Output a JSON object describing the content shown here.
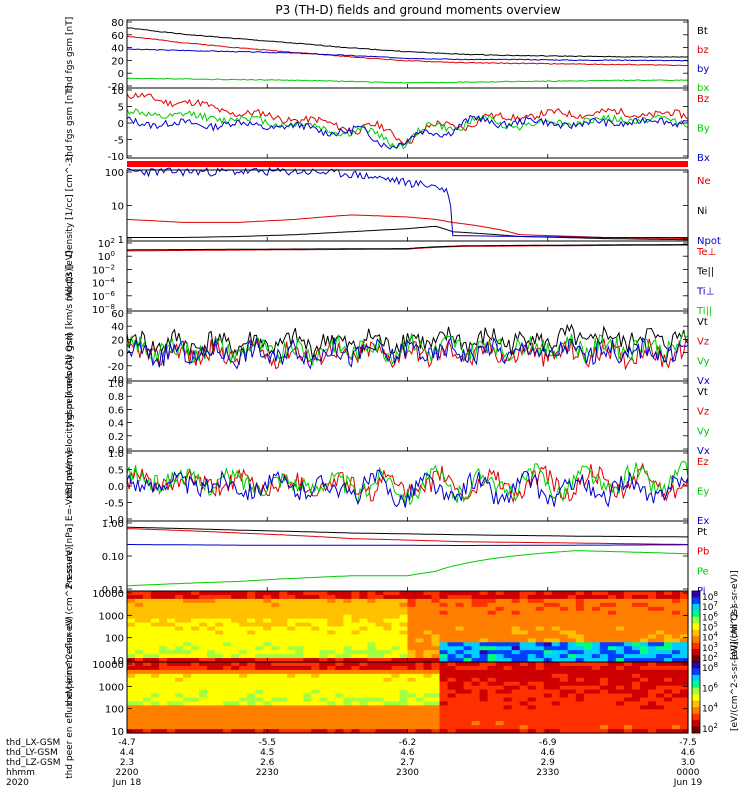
{
  "title": "P3 (TH-D) fields and ground moments overview",
  "colors": {
    "black": "#000000",
    "red": "#dd0000",
    "green": "#00cc00",
    "blue": "#0000cc",
    "bar": "#ff0000"
  },
  "chart_data": [
    {
      "id": "fgs_gsm",
      "type": "line",
      "ylabel": "thd fgs gsm [nT]",
      "ylim": [
        -20,
        85
      ],
      "ticks": [
        "80",
        "60",
        "40",
        "20",
        "0",
        "-20"
      ],
      "series": [
        {
          "name": "Bt",
          "color": "black",
          "x": [
            0,
            0.1,
            0.2,
            0.3,
            0.4,
            0.5,
            0.6,
            0.7,
            0.8,
            0.9,
            1.0
          ],
          "y": [
            73,
            63,
            56,
            49,
            42,
            36,
            32,
            30,
            29,
            28,
            28
          ]
        },
        {
          "name": "bz",
          "color": "red",
          "x": [
            0,
            0.1,
            0.2,
            0.3,
            0.4,
            0.5,
            0.6,
            0.7,
            0.8,
            0.9,
            1.0
          ],
          "y": [
            60,
            50,
            42,
            35,
            28,
            22,
            19,
            18,
            17,
            16,
            15
          ]
        },
        {
          "name": "by",
          "color": "blue",
          "x": [
            0,
            0.1,
            0.2,
            0.3,
            0.4,
            0.5,
            0.6,
            0.7,
            0.8,
            0.9,
            1.0
          ],
          "y": [
            40,
            38,
            36,
            34,
            30,
            26,
            24,
            24,
            23,
            23,
            22
          ]
        },
        {
          "name": "bx",
          "color": "green",
          "x": [
            0,
            0.1,
            0.2,
            0.3,
            0.4,
            0.5,
            0.6,
            0.7,
            0.8,
            0.9,
            1.0
          ],
          "y": [
            -5,
            -6,
            -7,
            -8,
            -10,
            -12,
            -11,
            -10,
            -9,
            -8,
            -8
          ]
        }
      ]
    },
    {
      "id": "fgs_gsm_detrended",
      "type": "line",
      "ylabel": "thd fgs gsm [nT]",
      "ylim": [
        -14,
        11
      ],
      "ticks": [
        "10",
        "5",
        "0",
        "-5",
        "-10"
      ],
      "series": [
        {
          "name": "Bz",
          "color": "red",
          "x": [
            0,
            0.1,
            0.2,
            0.3,
            0.4,
            0.5,
            0.55,
            0.6,
            0.7,
            0.8,
            0.9,
            1.0
          ],
          "y": [
            8,
            6,
            2,
            0,
            -3,
            -6,
            -4,
            -1,
            1,
            2,
            2,
            1
          ]
        },
        {
          "name": "By",
          "color": "green",
          "x": [
            0,
            0.1,
            0.2,
            0.3,
            0.4,
            0.5,
            0.55,
            0.6,
            0.7,
            0.8,
            0.9,
            1.0
          ],
          "y": [
            2,
            1,
            0,
            -2,
            -5,
            -8,
            -3,
            -1,
            -2,
            -1,
            0,
            -1
          ]
        },
        {
          "name": "Bx",
          "color": "blue",
          "x": [
            0,
            0.1,
            0.2,
            0.3,
            0.4,
            0.5,
            0.55,
            0.6,
            0.7,
            0.8,
            0.9,
            1.0
          ],
          "y": [
            -1,
            -2,
            -2,
            -3,
            -5,
            -9,
            -4,
            -2,
            -1,
            -2,
            -1,
            -1
          ]
        }
      ]
    },
    {
      "id": "density",
      "type": "line",
      "ylabel": "Density [1/cc] [cm^-3]",
      "scale": "log",
      "ylim": [
        1,
        200
      ],
      "ticks": [
        "100",
        "10",
        "1"
      ],
      "series": [
        {
          "name": "Ne",
          "color": "red",
          "x": [
            0,
            0.1,
            0.2,
            0.3,
            0.4,
            0.5,
            0.55,
            0.58,
            0.7,
            0.85,
            1.0
          ],
          "y": [
            5,
            4,
            4,
            5,
            7,
            6,
            5,
            4,
            1.6,
            1.3,
            1.2
          ]
        },
        {
          "name": "Ni",
          "color": "black",
          "x": [
            0,
            0.1,
            0.2,
            0.3,
            0.4,
            0.5,
            0.55,
            0.58,
            0.7,
            0.85,
            1.0
          ],
          "y": [
            1.3,
            1.3,
            1.4,
            1.6,
            2,
            2.5,
            3,
            2,
            1.4,
            1.2,
            1.1
          ]
        },
        {
          "name": "Npot",
          "color": "blue",
          "x": [
            0.3,
            0.35,
            0.4,
            0.45,
            0.5,
            0.55,
            0.57,
            0.58,
            0.7,
            0.85,
            1.0
          ],
          "y": [
            180,
            170,
            150,
            110,
            80,
            60,
            40,
            1.5,
            1.4,
            1.3,
            1.3
          ]
        }
      ]
    },
    {
      "id": "moqt3",
      "type": "line",
      "ylabel": "moqt3 [eV]",
      "scale": "log",
      "ylim": [
        1e-09,
        1000
      ],
      "ticks": [
        "10^2",
        "10^0",
        "10^-2",
        "10^-4",
        "10^-6",
        "10^-8"
      ],
      "series": [
        {
          "name": "Te⊥",
          "color": "red",
          "x": [
            0,
            0.5,
            0.6,
            1.0
          ],
          "y": [
            20,
            40,
            120,
            200
          ]
        },
        {
          "name": "Te||",
          "color": "black",
          "x": [
            0,
            0.5,
            0.6,
            1.0
          ],
          "y": [
            30,
            50,
            150,
            250
          ]
        },
        {
          "name": "Ti⊥",
          "color": "blue",
          "x": [
            0,
            1.0
          ],
          "y": [
            0,
            0
          ]
        },
        {
          "name": "Ti||",
          "color": "green",
          "x": [
            0,
            1.0
          ],
          "y": [
            0,
            0
          ]
        }
      ]
    },
    {
      "id": "peir_velocity",
      "type": "line",
      "ylabel": "thd peir velocity gsm [km/s (All Qs)]",
      "ylim": [
        -40,
        62
      ],
      "ticks": [
        "60",
        "40",
        "20",
        "0",
        "-20",
        "-40"
      ],
      "series": [
        {
          "name": "Vt",
          "color": "black",
          "x": [
            0,
            0.25,
            0.5,
            0.75,
            1.0
          ],
          "y": [
            15,
            14,
            18,
            20,
            22
          ]
        },
        {
          "name": "Vz",
          "color": "red",
          "x": [
            0,
            0.25,
            0.5,
            0.75,
            1.0
          ],
          "y": [
            0,
            0,
            0,
            0,
            0
          ]
        },
        {
          "name": "Vy",
          "color": "green",
          "x": [
            0,
            0.25,
            0.5,
            0.75,
            1.0
          ],
          "y": [
            5,
            5,
            8,
            10,
            10
          ]
        },
        {
          "name": "Vx",
          "color": "blue",
          "x": [
            0,
            0.25,
            0.5,
            0.75,
            1.0
          ],
          "y": [
            0,
            0,
            2,
            3,
            2
          ]
        }
      ]
    },
    {
      "id": "peer_velocity",
      "type": "line",
      "ylabel": "thd peer velocity gsm [km/s (All Qs)]",
      "ylim": [
        0,
        1
      ],
      "ticks": [
        "1.0",
        "0.8",
        "0.6",
        "0.4",
        "0.2",
        "0.0"
      ],
      "series": [
        {
          "name": "Vt",
          "color": "black",
          "x": [],
          "y": []
        },
        {
          "name": "Vz",
          "color": "red",
          "x": [],
          "y": []
        },
        {
          "name": "Vy",
          "color": "green",
          "x": [],
          "y": []
        },
        {
          "name": "Vx",
          "color": "blue",
          "x": [],
          "y": []
        }
      ]
    },
    {
      "id": "efield",
      "type": "line",
      "ylabel": "E=-VxB [mV/m]",
      "ylim": [
        -1,
        1
      ],
      "ticks": [
        "1.0",
        "0.5",
        "0.0",
        "-0.5",
        "-1.0"
      ],
      "series": [
        {
          "name": "Ez",
          "color": "red",
          "x": [
            0,
            0.5,
            1.0
          ],
          "y": [
            0.1,
            0,
            0.1
          ]
        },
        {
          "name": "Ey",
          "color": "green",
          "x": [
            0,
            0.5,
            1.0
          ],
          "y": [
            0.2,
            0,
            0.2
          ]
        },
        {
          "name": "Ex",
          "color": "blue",
          "x": [
            0,
            0.5,
            1.0
          ],
          "y": [
            0.1,
            -0.1,
            -0.1
          ]
        }
      ]
    },
    {
      "id": "pressure",
      "type": "line",
      "ylabel": "Pressure [nPa]",
      "scale": "log",
      "ylim": [
        0.005,
        3
      ],
      "ticks": [
        "1.00",
        "0.10",
        "0.01"
      ],
      "series": [
        {
          "name": "Pt",
          "color": "black",
          "x": [
            0,
            0.2,
            0.4,
            0.6,
            0.8,
            1.0
          ],
          "y": [
            1.7,
            1.3,
            1.0,
            0.85,
            0.75,
            0.7
          ]
        },
        {
          "name": "Pb",
          "color": "red",
          "x": [
            0,
            0.2,
            0.4,
            0.6,
            0.8,
            1.0
          ],
          "y": [
            1.5,
            1.0,
            0.6,
            0.45,
            0.4,
            0.35
          ]
        },
        {
          "name": "Pe",
          "color": "green",
          "x": [
            0,
            0.2,
            0.4,
            0.5,
            0.55,
            0.6,
            0.8,
            1.0
          ],
          "y": [
            0.008,
            0.012,
            0.02,
            0.02,
            0.03,
            0.06,
            0.2,
            0.15
          ]
        },
        {
          "name": "Pi",
          "color": "blue",
          "x": [
            0,
            0.2,
            0.4,
            0.6,
            0.8,
            1.0
          ],
          "y": [
            0.35,
            0.33,
            0.33,
            0.32,
            0.33,
            0.34
          ]
        }
      ]
    },
    {
      "id": "peir_en_eflux",
      "type": "heatmap",
      "ylabel": "thd peir en eflux eV (cm^2-s-sr-eV)",
      "scale": "log",
      "ylim": [
        5,
        30000
      ],
      "ticks": [
        "10000",
        "1000",
        "100",
        "10"
      ],
      "colorbar": {
        "label": "[eV/(cm^2-s-sr-eV)]",
        "ticks": [
          "10^8",
          "10^7",
          "10^6",
          "10^5",
          "10^4",
          "10^3",
          "10^2"
        ]
      }
    },
    {
      "id": "peer_en_eflux",
      "type": "heatmap",
      "ylabel": "thd peer en eflux eV (cm^2-s-sr-eV)",
      "scale": "log",
      "ylim": [
        5,
        30000
      ],
      "ticks": [
        "10000",
        "1000",
        "100",
        "10"
      ],
      "colorbar": {
        "label": "[eV/(cm^2-s-sr-eV)] (All Qs)",
        "ticks": [
          "10^8",
          "10^6",
          "10^4",
          "10^2"
        ]
      }
    }
  ],
  "axis": {
    "rows": [
      {
        "label": "thd_LX-GSM",
        "values": [
          "-4.7",
          "-5.5",
          "-6.2",
          "-6.9",
          "-7.5"
        ]
      },
      {
        "label": "thd_LY-GSM",
        "values": [
          "4.4",
          "4.5",
          "4.6",
          "4.6",
          "4.6"
        ]
      },
      {
        "label": "thd_LZ-GSM",
        "values": [
          "2.3",
          "2.6",
          "2.7",
          "2.9",
          "3.0"
        ]
      },
      {
        "label": "hhmm",
        "values": [
          "2200",
          "2230",
          "2300",
          "2330",
          "0000"
        ]
      },
      {
        "label": "2020",
        "values": [
          "Jun 18",
          "",
          "",
          "",
          "Jun 19"
        ]
      }
    ]
  }
}
